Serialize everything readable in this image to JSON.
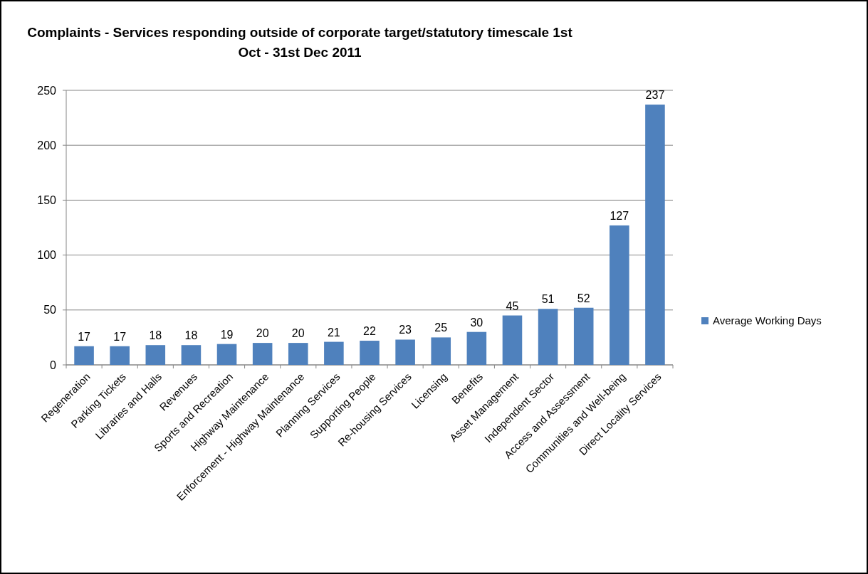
{
  "chart_data": {
    "type": "bar",
    "title": "Complaints - Services responding outside of corporate target/statutory timescale 1st Oct - 31st Dec 2011",
    "categories": [
      "Regeneration",
      "Parking Tickets",
      "Libraries and Halls",
      "Revenues",
      "Sports and Recreation",
      "Highway Maintenance",
      "Enforcement - Highway Maintenance",
      "Planning Services",
      "Supporting People",
      "Re-housing Services",
      "Licensing",
      "Benefits",
      "Asset Management",
      "Independent Sector",
      "Access and Assessment",
      "Communities and Well-being",
      "Direct Locality Services"
    ],
    "series": [
      {
        "name": "Average Working Days",
        "color": "#4f81bd",
        "values": [
          17,
          17,
          18,
          18,
          19,
          20,
          20,
          21,
          22,
          23,
          25,
          30,
          45,
          51,
          52,
          127,
          237
        ]
      }
    ],
    "ylim": [
      0,
      250
    ],
    "yticks": [
      0,
      50,
      100,
      150,
      200,
      250
    ],
    "grid": "y",
    "legend": "right",
    "data_labels": true
  }
}
